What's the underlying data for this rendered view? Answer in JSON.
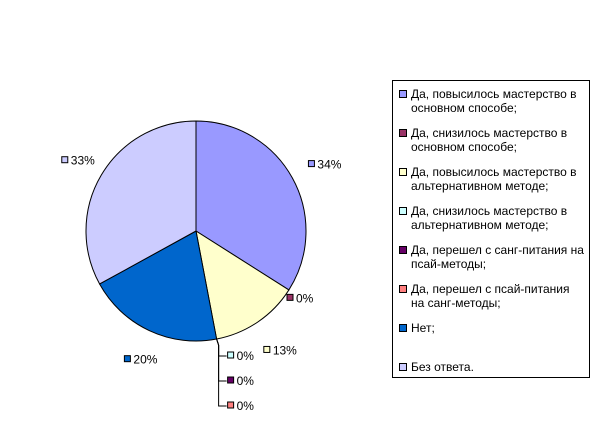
{
  "chart_data": {
    "type": "pie",
    "slices": [
      {
        "name": "Да, повысилось мастерство в основном способе;",
        "value": 34,
        "label": "34%",
        "color": "#9999FF"
      },
      {
        "name": "Да, снизилось мастерство в основном способе;",
        "value": 0,
        "label": "0%",
        "color": "#993366"
      },
      {
        "name": "Да, повысилось мастерство в альтернативном методе;",
        "value": 13,
        "label": "13%",
        "color": "#FFFFCC"
      },
      {
        "name": "Да, снизилось мастерство в альтернативном методе;",
        "value": 0,
        "label": "0%",
        "color": "#CCFFFF"
      },
      {
        "name": "Да, перешел с санг-питания на псай-методы;",
        "value": 0,
        "label": "0%",
        "color": "#660066"
      },
      {
        "name": "Да, перешел с псай-питания на санг-методы;",
        "value": 0,
        "label": "0%",
        "color": "#FF8080"
      },
      {
        "name": "Нет;",
        "value": 20,
        "label": "20%",
        "color": "#0066CC"
      },
      {
        "name": "Без ответа.",
        "value": 33,
        "label": "33%",
        "color": "#CCCCFF"
      }
    ],
    "legend_position": "right"
  }
}
